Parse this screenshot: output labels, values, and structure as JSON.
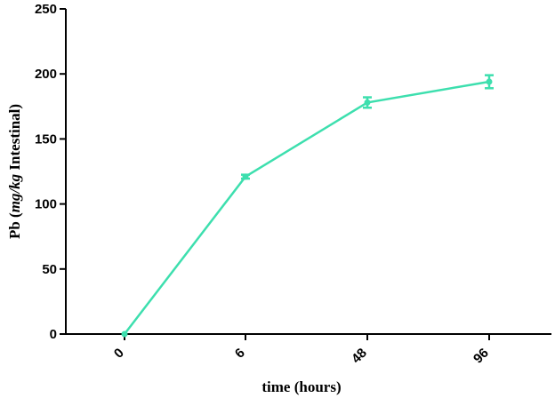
{
  "chart_data": {
    "type": "line",
    "categories": [
      "0",
      "6",
      "48",
      "96"
    ],
    "y_ticks": [
      "0",
      "50",
      "100",
      "150",
      "200",
      "250"
    ],
    "ylim": [
      0,
      250
    ],
    "series": [
      {
        "values": [
          0,
          121,
          178,
          194
        ],
        "error": [
          0,
          1.5,
          4,
          5
        ],
        "color": "#3ddfae"
      }
    ],
    "xlabel": "time (hours)",
    "ylabel_parts": [
      "Pb (",
      "mg/kg",
      " Intestinal)"
    ],
    "title": "",
    "grid": false
  }
}
